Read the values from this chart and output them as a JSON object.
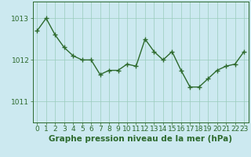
{
  "x": [
    0,
    1,
    2,
    3,
    4,
    5,
    6,
    7,
    8,
    9,
    10,
    11,
    12,
    13,
    14,
    15,
    16,
    17,
    18,
    19,
    20,
    21,
    22,
    23
  ],
  "y": [
    1012.7,
    1013.0,
    1012.6,
    1012.3,
    1012.1,
    1012.0,
    1012.0,
    1011.65,
    1011.75,
    1011.75,
    1011.9,
    1011.85,
    1012.5,
    1012.2,
    1012.0,
    1012.2,
    1011.75,
    1011.35,
    1011.35,
    1011.55,
    1011.75,
    1011.85,
    1011.9,
    1012.2
  ],
  "line_color": "#2d6a2d",
  "marker": "+",
  "markersize": 4,
  "linewidth": 1.0,
  "bg_color": "#cce9f0",
  "grid_color": "#99ccbb",
  "ylabel_ticks": [
    1011,
    1012,
    1013
  ],
  "xlabel_label": "Graphe pression niveau de la mer (hPa)",
  "xlabel_fontsize": 7.5,
  "tick_fontsize": 6.5,
  "ylim": [
    1010.5,
    1013.4
  ],
  "xlim": [
    -0.5,
    23.5
  ]
}
